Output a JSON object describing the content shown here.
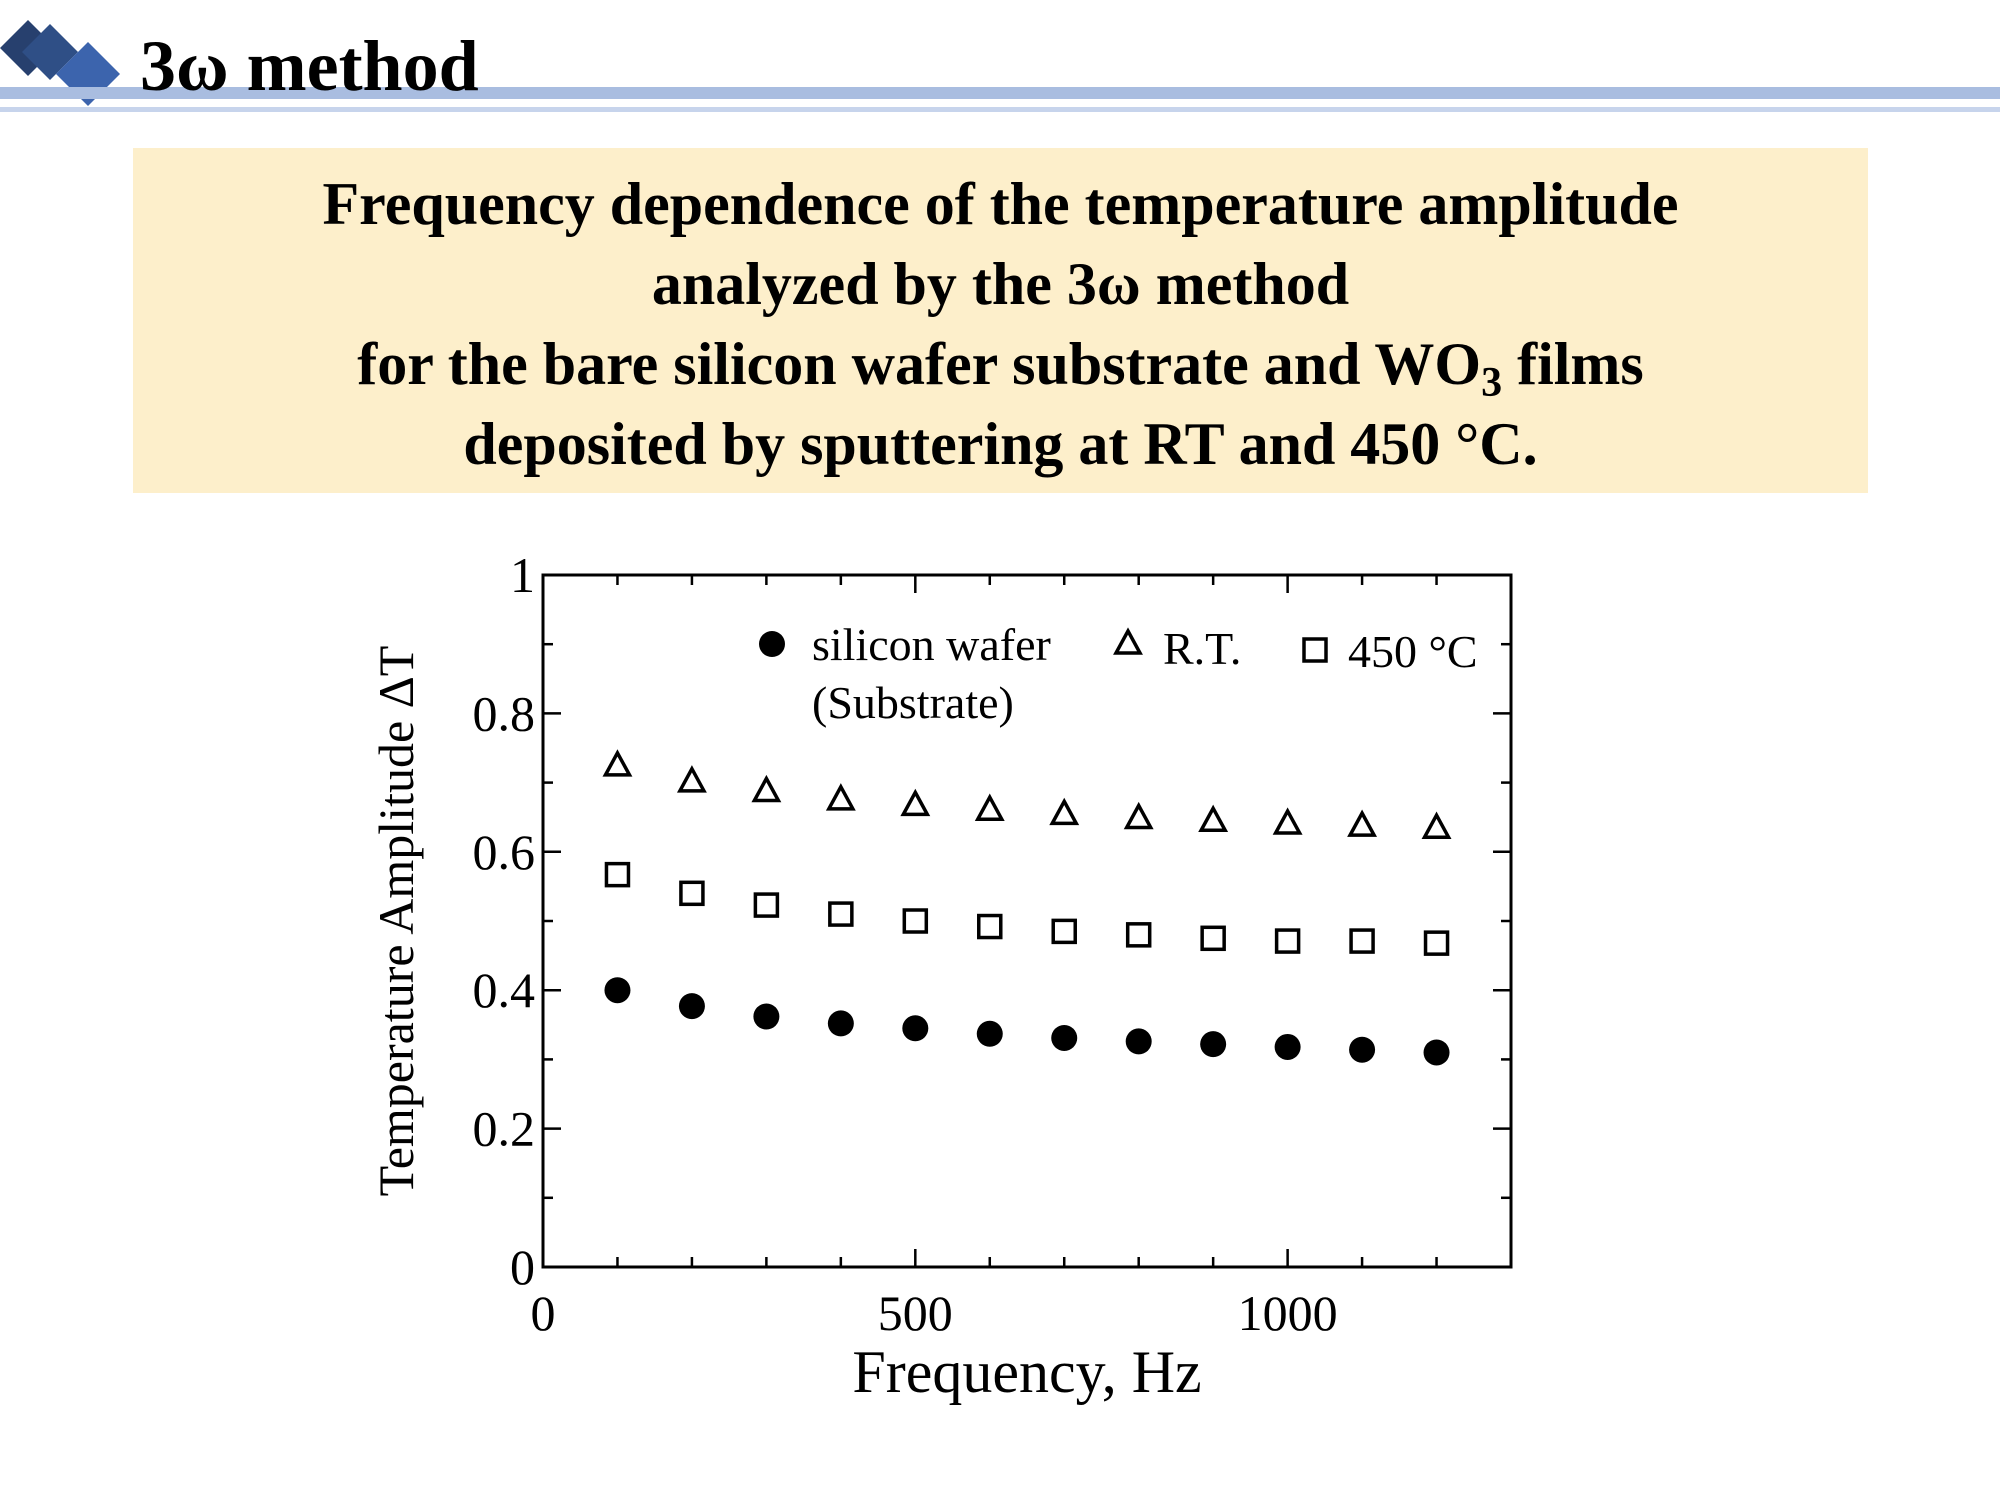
{
  "slide": {
    "title": "3ω method",
    "heading_line1": "Frequency dependence of the temperature amplitude",
    "heading_line2": "analyzed by the 3ω method",
    "heading_line3_pre": "for the bare silicon wafer substrate and WO",
    "heading_line3_sub": "3",
    "heading_line3_post": " films",
    "heading_line4": "deposited by sputtering at RT and 450 °C.",
    "colors": {
      "header_line": "#a9bde0",
      "header_line_light": "#c7d4ec",
      "diamond_dark": "#27406e",
      "diamond_blue": "#3c64ad",
      "heading_box": "#fdefcb"
    }
  },
  "chart_data": {
    "type": "scatter",
    "xlabel": "Frequency, Hz",
    "ylabel": "Temperature Amplitude ΔT",
    "xlim": [
      0,
      1300
    ],
    "ylim": [
      0,
      1
    ],
    "xticks": [
      0,
      500,
      1000
    ],
    "xtick_labels": [
      "0",
      "500",
      "1000"
    ],
    "yticks": [
      0,
      0.2,
      0.4,
      0.6,
      0.8,
      1
    ],
    "ytick_labels": [
      "0",
      "0.2",
      "0.4",
      "0.6",
      "0.8",
      "1"
    ],
    "grid": false,
    "legend_position": "top",
    "x": [
      100,
      200,
      300,
      400,
      500,
      600,
      700,
      800,
      900,
      1000,
      1100,
      1200
    ],
    "series": [
      {
        "name": "silicon wafer",
        "name_line2": "(Substrate)",
        "marker": "filled-circle",
        "values": [
          0.4,
          0.377,
          0.362,
          0.352,
          0.345,
          0.337,
          0.331,
          0.326,
          0.322,
          0.318,
          0.314,
          0.31
        ]
      },
      {
        "name": "R.T.",
        "marker": "open-triangle",
        "values": [
          0.727,
          0.704,
          0.69,
          0.678,
          0.67,
          0.663,
          0.657,
          0.651,
          0.647,
          0.643,
          0.64,
          0.637
        ]
      },
      {
        "name": "450 °C",
        "marker": "open-square",
        "values": [
          0.567,
          0.54,
          0.523,
          0.51,
          0.5,
          0.492,
          0.485,
          0.48,
          0.475,
          0.471,
          0.471,
          0.468
        ]
      }
    ]
  }
}
